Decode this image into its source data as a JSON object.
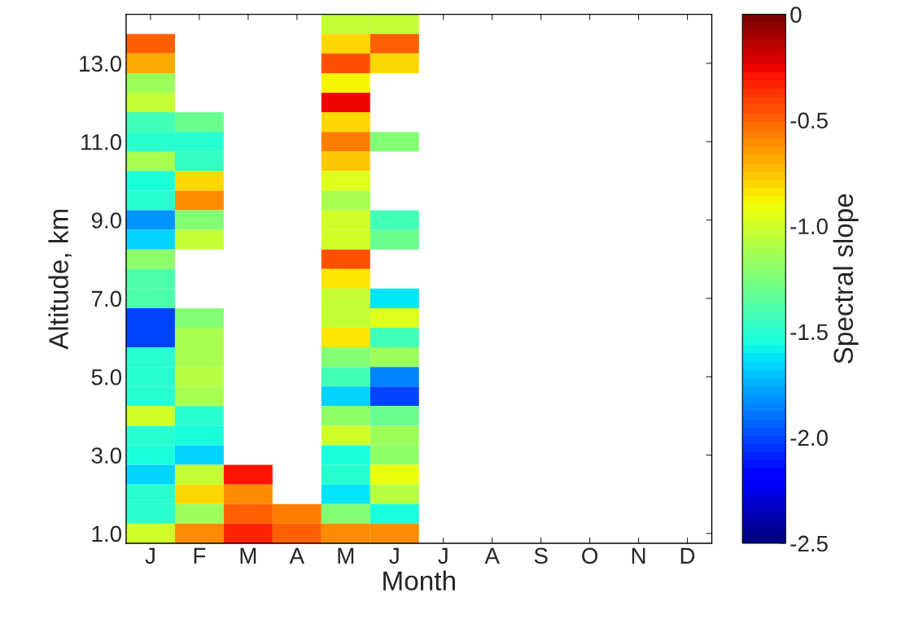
{
  "chart_data": {
    "type": "heatmap",
    "xlabel": "Month",
    "ylabel": "Altitude, km",
    "clabel": "Spectral slope",
    "categories": [
      "J",
      "F",
      "M",
      "A",
      "M",
      "J",
      "J",
      "A",
      "S",
      "O",
      "N",
      "D"
    ],
    "y_categories": [
      null,
      null,
      "13.0",
      null,
      null,
      null,
      "11.0",
      null,
      null,
      null,
      "9.0",
      null,
      null,
      null,
      "7.0",
      null,
      null,
      null,
      "5.0",
      null,
      null,
      null,
      "3.0",
      null,
      null,
      null,
      "1.0"
    ],
    "cells": [
      [
        null,
        null,
        null,
        null,
        -1.05,
        -1.03,
        null,
        null,
        null,
        null,
        null,
        null
      ],
      [
        -0.5,
        null,
        null,
        null,
        -0.8,
        -0.47,
        null,
        null,
        null,
        null,
        null,
        null
      ],
      [
        -0.68,
        null,
        null,
        null,
        -0.44,
        -0.8,
        null,
        null,
        null,
        null,
        null,
        null
      ],
      [
        -1.17,
        null,
        null,
        null,
        -0.88,
        null,
        null,
        null,
        null,
        null,
        null,
        null
      ],
      [
        -1.03,
        null,
        null,
        null,
        -0.27,
        null,
        null,
        null,
        null,
        null,
        null,
        null
      ],
      [
        -1.42,
        -1.3,
        null,
        null,
        -0.8,
        null,
        null,
        null,
        null,
        null,
        null,
        null
      ],
      [
        -1.52,
        -1.52,
        null,
        null,
        -0.55,
        -1.25,
        null,
        null,
        null,
        null,
        null,
        null
      ],
      [
        -1.13,
        -1.45,
        null,
        null,
        -0.75,
        null,
        null,
        null,
        null,
        null,
        null,
        null
      ],
      [
        -1.56,
        -0.8,
        null,
        null,
        -0.94,
        null,
        null,
        null,
        null,
        null,
        null,
        null
      ],
      [
        -1.52,
        -0.6,
        null,
        null,
        -1.13,
        null,
        null,
        null,
        null,
        null,
        null,
        null
      ],
      [
        -1.8,
        -1.25,
        null,
        null,
        -1.0,
        -1.42,
        null,
        null,
        null,
        null,
        null,
        null
      ],
      [
        -1.67,
        -1.05,
        null,
        null,
        -1.0,
        -1.3,
        null,
        null,
        null,
        null,
        null,
        null
      ],
      [
        -1.2,
        null,
        null,
        null,
        -0.44,
        null,
        null,
        null,
        null,
        null,
        null,
        null
      ],
      [
        -1.37,
        null,
        null,
        null,
        -0.85,
        null,
        null,
        null,
        null,
        null,
        null,
        null
      ],
      [
        -1.37,
        null,
        null,
        null,
        -1.05,
        -1.62,
        null,
        null,
        null,
        null,
        null,
        null
      ],
      [
        -2.03,
        -1.25,
        null,
        null,
        -1.05,
        -0.94,
        null,
        null,
        null,
        null,
        null,
        null
      ],
      [
        -2.0,
        -1.13,
        null,
        null,
        -0.85,
        -1.44,
        null,
        null,
        null,
        null,
        null,
        null
      ],
      [
        -1.52,
        -1.13,
        null,
        null,
        -1.25,
        -1.17,
        null,
        null,
        null,
        null,
        null,
        null
      ],
      [
        -1.52,
        -1.08,
        null,
        null,
        -1.42,
        -1.87,
        null,
        null,
        null,
        null,
        null,
        null
      ],
      [
        -1.52,
        -1.13,
        null,
        null,
        -1.67,
        -2.03,
        null,
        null,
        null,
        null,
        null,
        null
      ],
      [
        -1.0,
        -1.5,
        null,
        null,
        -1.2,
        -1.3,
        null,
        null,
        null,
        null,
        null,
        null
      ],
      [
        -1.5,
        -1.56,
        null,
        null,
        -1.0,
        -1.17,
        null,
        null,
        null,
        null,
        null,
        null
      ],
      [
        -1.56,
        -1.67,
        null,
        null,
        -1.54,
        -1.2,
        null,
        null,
        null,
        null,
        null,
        null
      ],
      [
        -1.67,
        -1.05,
        -0.31,
        null,
        -1.5,
        -0.9,
        null,
        null,
        null,
        null,
        null,
        null
      ],
      [
        -1.52,
        -0.8,
        -0.62,
        null,
        -1.62,
        -1.08,
        null,
        null,
        null,
        null,
        null,
        null
      ],
      [
        -1.52,
        -1.17,
        -0.47,
        -0.55,
        -1.25,
        -1.54,
        null,
        null,
        null,
        null,
        null,
        null
      ],
      [
        -1.0,
        -0.6,
        -0.35,
        -0.5,
        -0.6,
        -0.62,
        null,
        null,
        null,
        null,
        null,
        null
      ]
    ],
    "clim": [
      -2.5,
      0
    ],
    "cticks": [
      0,
      {
        "value": -0.5,
        "label": "-0.5"
      },
      {
        "value": -1.0,
        "label": "-1.0"
      },
      {
        "value": -1.5,
        "label": "-1.5"
      },
      {
        "value": -2.0,
        "label": "-2.0"
      },
      {
        "value": -2.5,
        "label": "-2.5"
      }
    ],
    "grid": false
  }
}
